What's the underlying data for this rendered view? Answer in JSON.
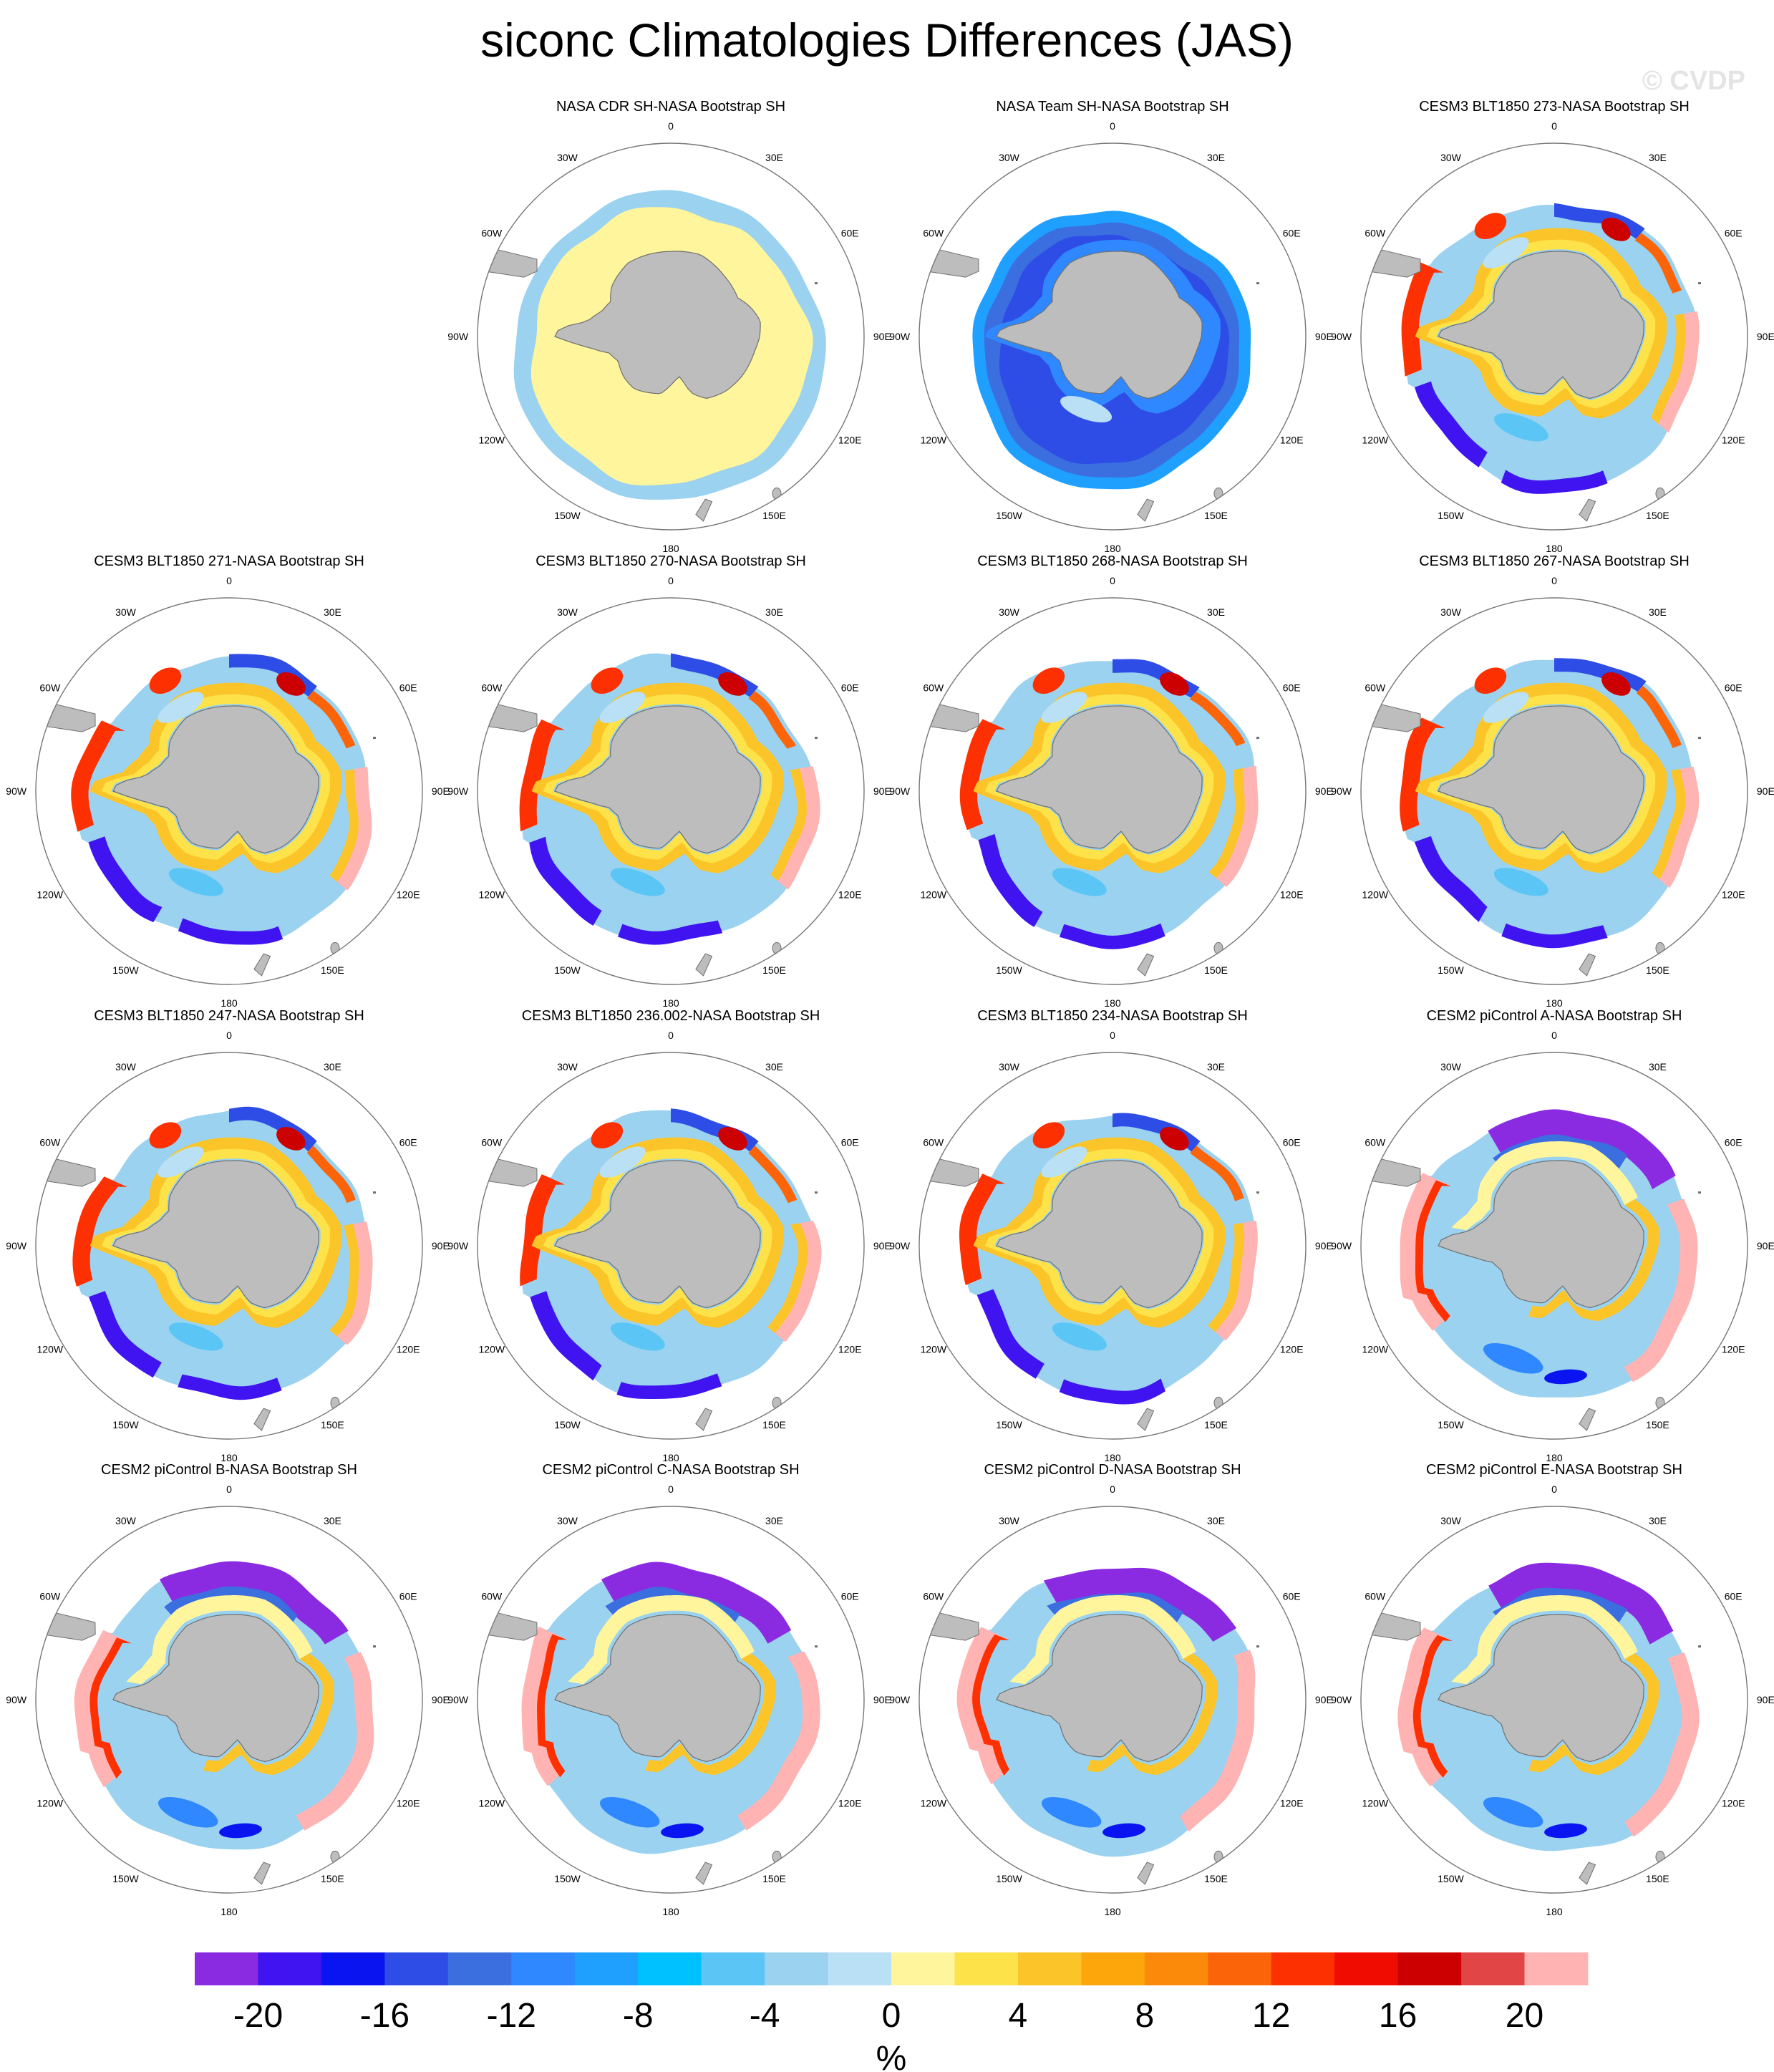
{
  "title": "siconc Climatologies Differences (JAS)",
  "watermark": "© CVDP",
  "colors": {
    "land": "#bdbdbd",
    "land_edge": "#6f6f6f",
    "circle": "#777777",
    "palette": [
      "#8a2be2",
      "#3f14f0",
      "#0a14f0",
      "#2e4de6",
      "#3b6fe0",
      "#2f88ff",
      "#1fa0ff",
      "#00c1ff",
      "#5bc6f5",
      "#9ad2f0",
      "#b9e0f5",
      "#fff59d",
      "#fde24a",
      "#fbc52a",
      "#fca60c",
      "#fb8a0a",
      "#fb6408",
      "#fc3000",
      "#f10c00",
      "#cc0000",
      "#e14545",
      "#ffb3b3"
    ]
  },
  "chart_data": {
    "type": "heatmap",
    "projection": "south-polar-stereographic",
    "panels": [
      {
        "title": "NASA CDR SH-NASA Bootstrap SH",
        "pattern": "cdr"
      },
      {
        "title": "NASA Team SH-NASA Bootstrap SH",
        "pattern": "team"
      },
      {
        "title": "CESM3 BLT1850 273-NASA Bootstrap SH",
        "pattern": "cesm3"
      },
      {
        "title": "CESM3 BLT1850 271-NASA Bootstrap SH",
        "pattern": "cesm3"
      },
      {
        "title": "CESM3 BLT1850 270-NASA Bootstrap SH",
        "pattern": "cesm3"
      },
      {
        "title": "CESM3 BLT1850 268-NASA Bootstrap SH",
        "pattern": "cesm3"
      },
      {
        "title": "CESM3 BLT1850 267-NASA Bootstrap SH",
        "pattern": "cesm3"
      },
      {
        "title": "CESM3 BLT1850 247-NASA Bootstrap SH",
        "pattern": "cesm3"
      },
      {
        "title": "CESM3 BLT1850 236.002-NASA Bootstrap SH",
        "pattern": "cesm3"
      },
      {
        "title": "CESM3 BLT1850 234-NASA Bootstrap SH",
        "pattern": "cesm3"
      },
      {
        "title": "CESM2 piControl A-NASA Bootstrap SH",
        "pattern": "cesm2"
      },
      {
        "title": "CESM2 piControl B-NASA Bootstrap SH",
        "pattern": "cesm2"
      },
      {
        "title": "CESM2 piControl C-NASA Bootstrap SH",
        "pattern": "cesm2"
      },
      {
        "title": "CESM2 piControl D-NASA Bootstrap SH",
        "pattern": "cesm2"
      },
      {
        "title": "CESM2 piControl E-NASA Bootstrap SH",
        "pattern": "cesm2"
      }
    ],
    "lon_labels": [
      "0",
      "30E",
      "60E",
      "90E",
      "120E",
      "150E",
      "180",
      "150W",
      "120W",
      "90W",
      "60W",
      "30W"
    ],
    "colorbar": {
      "levels": [
        -22,
        -20,
        -18,
        -16,
        -14,
        -12,
        -10,
        -8,
        -6,
        -4,
        -2,
        0,
        2,
        4,
        6,
        8,
        10,
        12,
        14,
        16,
        18,
        20,
        22
      ],
      "tick_labels": [
        "-20",
        "-16",
        "-12",
        "-8",
        "-4",
        "0",
        "4",
        "8",
        "12",
        "16",
        "20"
      ],
      "units": "%"
    }
  }
}
